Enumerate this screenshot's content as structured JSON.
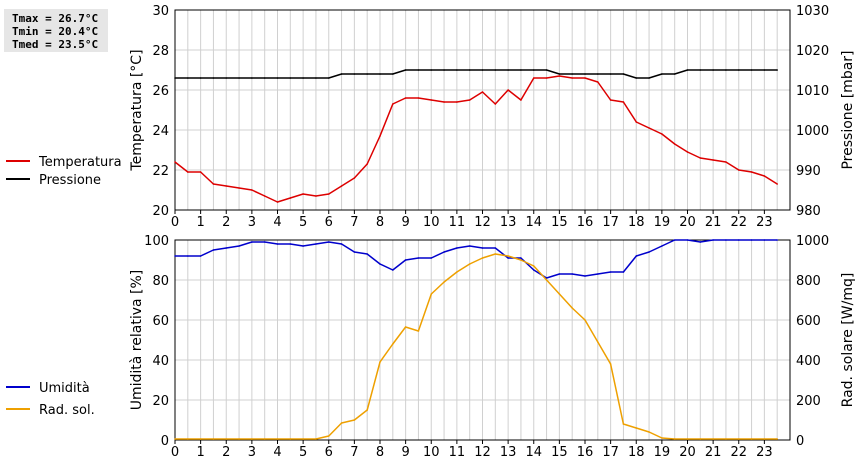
{
  "stats": {
    "tmax": "Tmax = 26.7°C",
    "tmin": "Tmin = 20.4°C",
    "tmed": "Tmed = 23.5°C"
  },
  "chart_data": [
    {
      "type": "line",
      "x": [
        0,
        0.5,
        1,
        1.5,
        2,
        2.5,
        3,
        3.5,
        4,
        4.5,
        5,
        5.5,
        6,
        6.5,
        7,
        7.5,
        8,
        8.5,
        9,
        9.5,
        10,
        10.5,
        11,
        11.5,
        12,
        12.5,
        13,
        13.5,
        14,
        14.5,
        15,
        15.5,
        16,
        16.5,
        17,
        17.5,
        18,
        18.5,
        19,
        19.5,
        20,
        20.5,
        21,
        21.5,
        22,
        22.5,
        23,
        23.5
      ],
      "xlim": [
        0,
        24
      ],
      "x_ticks": [
        0,
        1,
        2,
        3,
        4,
        5,
        6,
        7,
        8,
        9,
        10,
        11,
        12,
        13,
        14,
        15,
        16,
        17,
        18,
        19,
        20,
        21,
        22,
        23
      ],
      "ylabel": "Temperatura [°C]",
      "ylim": [
        20,
        30
      ],
      "y_ticks": [
        20,
        22,
        24,
        26,
        28,
        30
      ],
      "y2label": "Pressione [mbar]",
      "y2lim": [
        980,
        1030
      ],
      "y2_ticks": [
        980,
        990,
        1000,
        1010,
        1020,
        1030
      ],
      "grid": true,
      "legend_position": "left",
      "series": [
        {
          "name": "Temperatura",
          "axis": "left",
          "color": "#dd0000",
          "values": [
            22.4,
            21.9,
            21.9,
            21.3,
            21.2,
            21.1,
            21.0,
            20.7,
            20.4,
            20.6,
            20.8,
            20.7,
            20.8,
            21.2,
            21.6,
            22.3,
            23.7,
            25.3,
            25.6,
            25.6,
            25.5,
            25.4,
            25.4,
            25.5,
            25.9,
            25.3,
            26.0,
            25.5,
            26.6,
            26.6,
            26.7,
            26.6,
            26.6,
            26.4,
            25.5,
            25.4,
            24.4,
            24.1,
            23.8,
            23.3,
            22.9,
            22.6,
            22.5,
            22.4,
            22.0,
            21.9,
            21.7,
            21.3
          ]
        },
        {
          "name": "Pressione",
          "axis": "right",
          "color": "#000000",
          "values": [
            1013,
            1013,
            1013,
            1013,
            1013,
            1013,
            1013,
            1013,
            1013,
            1013,
            1013,
            1013,
            1013,
            1014,
            1014,
            1014,
            1014,
            1014,
            1015,
            1015,
            1015,
            1015,
            1015,
            1015,
            1015,
            1015,
            1015,
            1015,
            1015,
            1015,
            1014,
            1014,
            1014,
            1014,
            1014,
            1014,
            1013,
            1013,
            1014,
            1014,
            1015,
            1015,
            1015,
            1015,
            1015,
            1015,
            1015,
            1015
          ]
        }
      ]
    },
    {
      "type": "line",
      "x": [
        0,
        0.5,
        1,
        1.5,
        2,
        2.5,
        3,
        3.5,
        4,
        4.5,
        5,
        5.5,
        6,
        6.5,
        7,
        7.5,
        8,
        8.5,
        9,
        9.5,
        10,
        10.5,
        11,
        11.5,
        12,
        12.5,
        13,
        13.5,
        14,
        14.5,
        15,
        15.5,
        16,
        16.5,
        17,
        17.5,
        18,
        18.5,
        19,
        19.5,
        20,
        20.5,
        21,
        21.5,
        22,
        22.5,
        23,
        23.5
      ],
      "xlim": [
        0,
        24
      ],
      "x_ticks": [
        0,
        1,
        2,
        3,
        4,
        5,
        6,
        7,
        8,
        9,
        10,
        11,
        12,
        13,
        14,
        15,
        16,
        17,
        18,
        19,
        20,
        21,
        22,
        23
      ],
      "ylabel": "Umidità relativa [%]",
      "ylim": [
        0,
        100
      ],
      "y_ticks": [
        0,
        20,
        40,
        60,
        80,
        100
      ],
      "y2label": "Rad. solare [W/mq]",
      "y2lim": [
        0,
        1000
      ],
      "y2_ticks": [
        0,
        200,
        400,
        600,
        800,
        1000
      ],
      "grid": true,
      "legend_position": "left",
      "series": [
        {
          "name": "Umidità",
          "axis": "left",
          "color": "#0000cc",
          "values": [
            92,
            92,
            92,
            95,
            96,
            97,
            99,
            99,
            98,
            98,
            97,
            98,
            99,
            98,
            94,
            93,
            88,
            85,
            90,
            91,
            91,
            94,
            96,
            97,
            96,
            96,
            91,
            91,
            85,
            81,
            83,
            83,
            82,
            83,
            84,
            84,
            92,
            94,
            97,
            100,
            100,
            99,
            100,
            100,
            100,
            100,
            100,
            100
          ]
        },
        {
          "name": "Rad. sol.",
          "axis": "right",
          "color": "#eea000",
          "values": [
            5,
            5,
            5,
            5,
            5,
            5,
            5,
            5,
            5,
            5,
            5,
            5,
            20,
            85,
            100,
            150,
            390,
            480,
            565,
            545,
            730,
            790,
            840,
            880,
            910,
            930,
            920,
            900,
            870,
            800,
            730,
            660,
            600,
            490,
            380,
            80,
            60,
            40,
            10,
            5,
            5,
            5,
            5,
            5,
            5,
            5,
            5,
            5
          ]
        }
      ]
    }
  ]
}
